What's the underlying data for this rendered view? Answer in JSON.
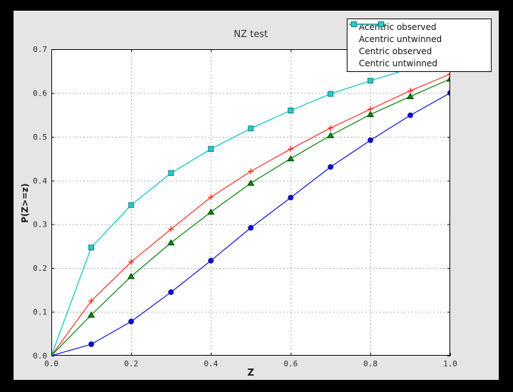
{
  "chart_data": {
    "type": "line",
    "title": "NZ test",
    "xlabel": "Z",
    "ylabel": "P(Z>=z)",
    "xlim": [
      0.0,
      1.0
    ],
    "ylim": [
      0.0,
      0.7
    ],
    "grid": true,
    "legend_position": "upper right",
    "xticks": [
      0.0,
      0.2,
      0.4,
      0.6,
      0.8,
      1.0
    ],
    "xtick_labels": [
      "0.0",
      "0.2",
      "0.4",
      "0.6",
      "0.8",
      "1.0"
    ],
    "yticks": [
      0.0,
      0.1,
      0.2,
      0.3,
      0.4,
      0.5,
      0.6,
      0.7
    ],
    "ytick_labels": [
      "0.0",
      "0.1",
      "0.2",
      "0.3",
      "0.4",
      "0.5",
      "0.6",
      "0.7"
    ],
    "x": [
      0.0,
      0.1,
      0.2,
      0.3,
      0.4,
      0.5,
      0.6,
      0.7,
      0.8,
      0.9,
      1.0
    ],
    "series": [
      {
        "name": "Acentric observed",
        "color": "#0a0ae0",
        "marker": "circle",
        "marker_fill": "#0f0fe0",
        "marker_edge": "#000080",
        "legend_marker": "none",
        "values": [
          0.0,
          0.026,
          0.078,
          0.145,
          0.217,
          0.292,
          0.361,
          0.431,
          0.492,
          0.549,
          0.6
        ]
      },
      {
        "name": "Acentric untwinned",
        "color": "#008000",
        "marker": "triangle",
        "marker_fill": "#0a8c0a",
        "marker_edge": "#003d00",
        "legend_marker": "none",
        "values": [
          0.0,
          0.093,
          0.181,
          0.258,
          0.328,
          0.394,
          0.45,
          0.503,
          0.551,
          0.592,
          0.632
        ]
      },
      {
        "name": "Centric observed",
        "color": "#fb2b1c",
        "marker": "plus",
        "marker_fill": "#fb2b1c",
        "marker_edge": "#fb2b1c",
        "legend_marker": "plus",
        "values": [
          0.0,
          0.125,
          0.214,
          0.289,
          0.362,
          0.421,
          0.472,
          0.52,
          0.563,
          0.605,
          0.643
        ]
      },
      {
        "name": "Centric untwinned",
        "color": "#00c2c2",
        "marker": "square",
        "marker_fill": "#2fc9c9",
        "marker_edge": "#0a7d7d",
        "legend_marker": "square",
        "values": [
          0.0,
          0.247,
          0.344,
          0.417,
          0.472,
          0.519,
          0.56,
          0.598,
          0.628,
          0.656,
          0.681
        ]
      }
    ]
  },
  "colors": {
    "frame_bg": "#000000",
    "figure_bg": "#e5e5e5",
    "plot_bg": "#ffffff",
    "grid": "#ababab",
    "spine": "#000000"
  }
}
